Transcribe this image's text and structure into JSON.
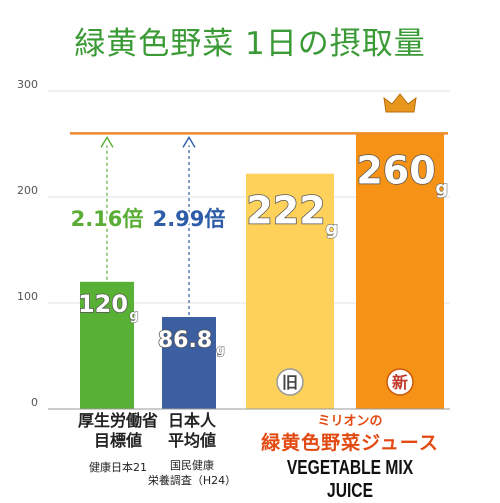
{
  "title": "緑黄色野菜 1日の摂取量",
  "chart_data": {
    "type": "bar",
    "ylim": [
      0,
      300
    ],
    "yticks": [
      "0",
      "100",
      "200",
      "300"
    ],
    "unit": "g",
    "reference_value": 260,
    "categories": [
      "厚生労働省目標値",
      "日本人平均値",
      "旧",
      "新"
    ],
    "values": [
      120,
      86.8,
      222,
      260
    ],
    "value_labels": [
      "120",
      "86.8",
      "222",
      "260"
    ],
    "bar_badges": [
      "",
      "",
      "旧",
      "新"
    ],
    "bar_colors": [
      "#58b134",
      "#3b5fa0",
      "#fdd15a",
      "#f69317"
    ],
    "multipliers": [
      "2.16倍",
      "2.99倍"
    ],
    "multiplier_colors": [
      "#5aae35",
      "#2e5ca8"
    ],
    "reference_line_color": "#ee8a2a",
    "crown_color": "#e8961e"
  },
  "labels": {
    "cat1_line1": "厚生労働省",
    "cat1_line2": "目標値",
    "cat1_sub": "健康日本21",
    "cat2_line1": "日本人",
    "cat2_line2": "平均値",
    "cat2_sub1": "国民健康",
    "cat2_sub2": "栄養調査（H24）",
    "brand_top": "ミリオンの",
    "brand_mid": "緑黄色野菜ジュース",
    "brand_bot": "VEGETABLE MIX JUICE"
  }
}
